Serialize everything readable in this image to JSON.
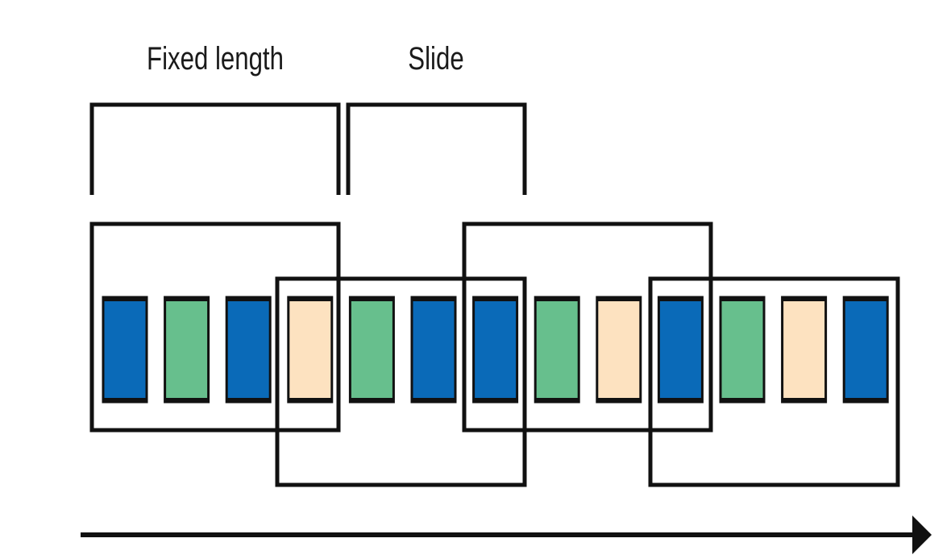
{
  "labels": {
    "fixed_length": "Fixed length",
    "slide": "Slide"
  },
  "colors": {
    "blue": "#0a6ab8",
    "green": "#67bf8d",
    "peach": "#fde2c0",
    "outline": "#111111"
  },
  "events": [
    "blue",
    "green",
    "blue",
    "peach",
    "green",
    "blue",
    "blue",
    "green",
    "peach",
    "blue",
    "green",
    "peach",
    "blue"
  ]
}
